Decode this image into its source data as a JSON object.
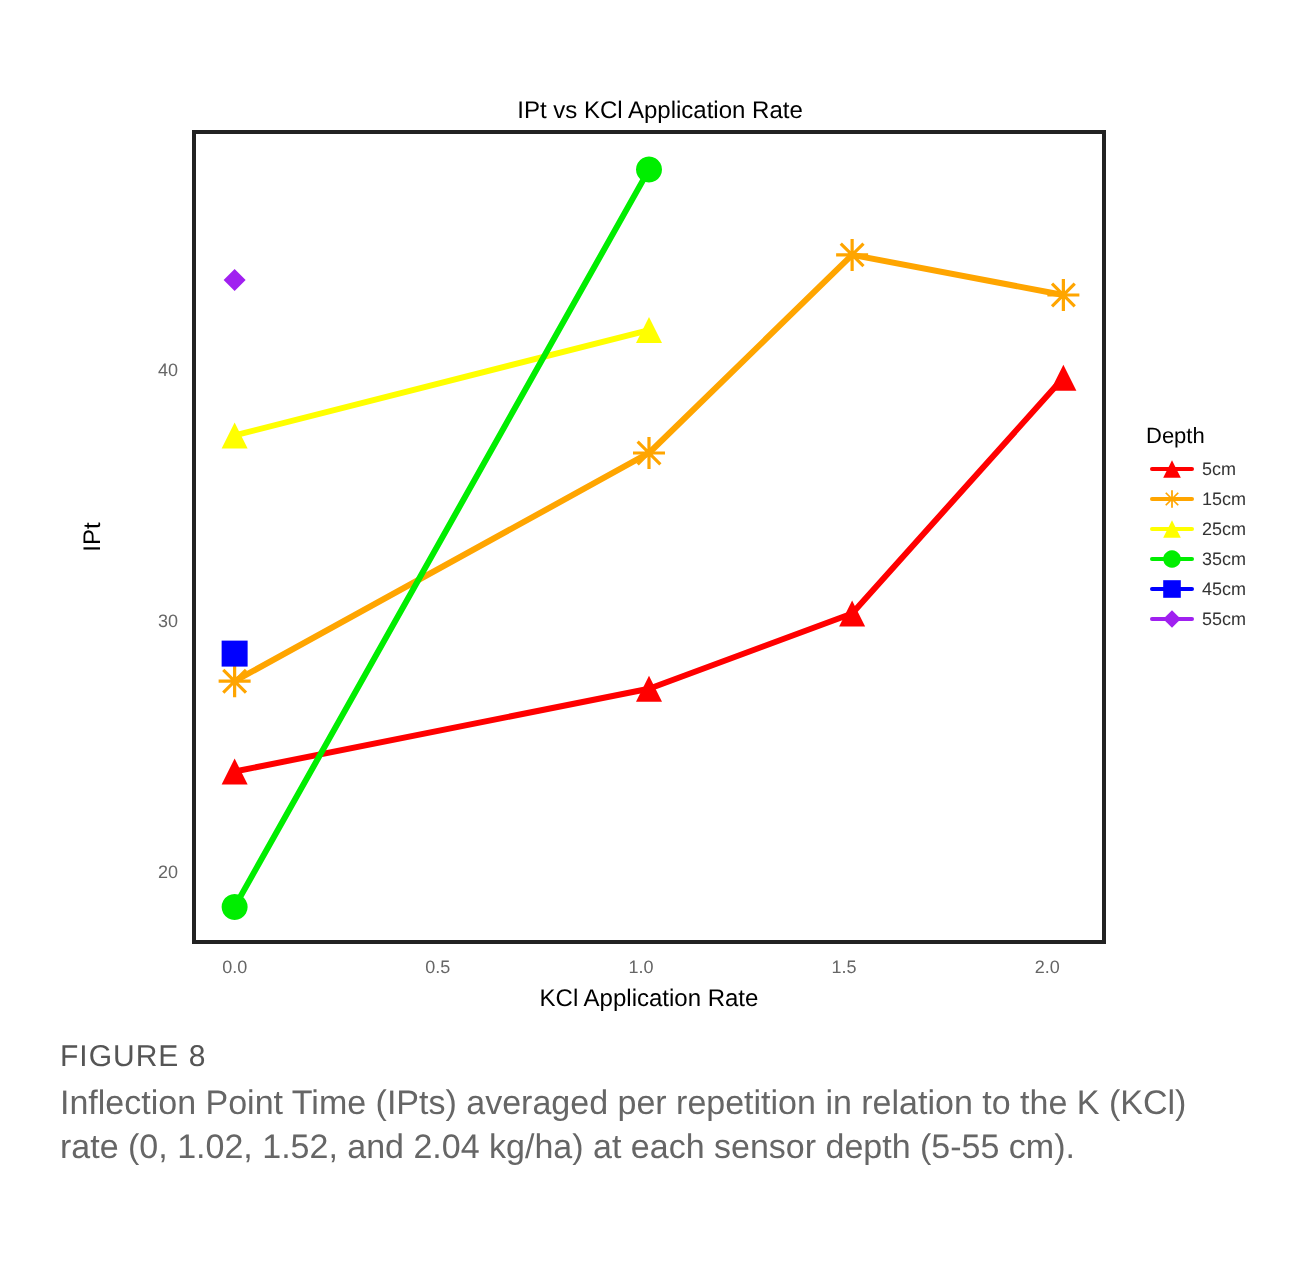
{
  "chart_data": {
    "type": "line",
    "title": "IPt vs KCl Application Rate",
    "xlabel": "KCl Application Rate",
    "ylabel": "IPt",
    "legend_title": "Depth",
    "legend": "right",
    "grid": false,
    "line_style": "solid",
    "xlim": [
      -0.1,
      2.14
    ],
    "xticks": [
      {
        "value": 0,
        "label": "0.0"
      },
      {
        "value": 0.5,
        "label": "0.5"
      },
      {
        "value": 1,
        "label": "1.0"
      },
      {
        "value": 1.5,
        "label": "1.5"
      },
      {
        "value": 2,
        "label": "2.0"
      }
    ],
    "ylim": [
      17.2,
      49.5
    ],
    "yticks": [
      20,
      30,
      40
    ],
    "series": [
      {
        "name": "5cm",
        "color": "#ff0000",
        "marker": "triangle",
        "x": [
          0,
          1.02,
          1.52,
          2.04
        ],
        "values": [
          24.0,
          27.3,
          30.3,
          39.7
        ]
      },
      {
        "name": "15cm",
        "color": "#ffa500",
        "marker": "star",
        "x": [
          0,
          1.02,
          1.52,
          2.04
        ],
        "values": [
          27.6,
          36.7,
          44.6,
          43.0
        ]
      },
      {
        "name": "25cm",
        "color": "#ffff00",
        "marker": "triangle",
        "x": [
          0,
          1.02
        ],
        "values": [
          37.4,
          41.6
        ]
      },
      {
        "name": "35cm",
        "color": "#00ee00",
        "marker": "circle",
        "x": [
          0,
          1.02
        ],
        "values": [
          18.6,
          48.0
        ]
      },
      {
        "name": "45cm",
        "color": "#0000ff",
        "marker": "square",
        "x": [
          0
        ],
        "values": [
          28.7
        ]
      },
      {
        "name": "55cm",
        "color": "#a020f0",
        "marker": "diamond",
        "x": [
          0
        ],
        "values": [
          43.6
        ]
      }
    ],
    "annotations": [
      "FIGURE 8",
      "Inflection Point Time (IPts) averaged per repetition in relation to the K (KCl) rate (0, 1.02, 1.52, and 2.04 kg/ha) at each sensor depth (5-55 cm)."
    ]
  }
}
